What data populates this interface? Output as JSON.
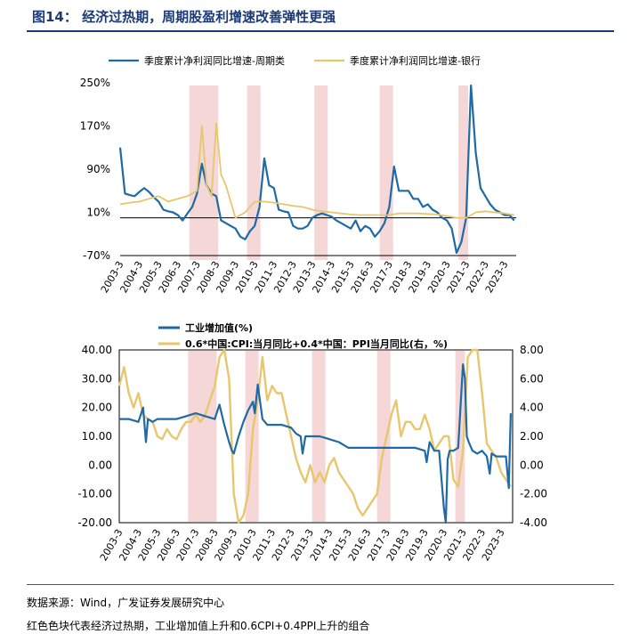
{
  "title": "图14：  经济过热期，周期股盈利增速改善弹性更强",
  "footer": {
    "source": "数据来源：Wind，广发证券发展研究中心",
    "note": "红色色块代表经济过热期，工业增加值上升和0.6CPI+0.4PPI上升的组合"
  },
  "colors": {
    "blue": "#1f6aa5",
    "gold": "#e8c66d",
    "shade": "#f6d7d7"
  },
  "chart_data": [
    {
      "type": "line",
      "legend": [
        "季度累计净利润同比增速-周期类",
        "季度累计净利润同比增速-银行"
      ],
      "yticks": [
        "250%",
        "170%",
        "90%",
        "10%",
        "-70%"
      ],
      "ylim": [
        -70,
        250
      ],
      "xticks": [
        "2003-3",
        "2004-3",
        "2005-3",
        "2006-3",
        "2007-3",
        "2008-3",
        "2009-3",
        "2010-3",
        "2011-3",
        "2012-3",
        "2013-3",
        "2014-3",
        "2015-3",
        "2016-3",
        "2017-3",
        "2018-3",
        "2019-3",
        "2020-3",
        "2021-3",
        "2022-3",
        "2023-3"
      ],
      "shaded_periods": [
        [
          2006.6,
          2008.1
        ],
        [
          2009.6,
          2010.3
        ],
        [
          2013.1,
          2013.8
        ],
        [
          2016.5,
          2017.2
        ],
        [
          2020.6,
          2021.1
        ]
      ],
      "series": [
        {
          "name": "季度累计净利润同比增速-周期类",
          "x": [
            2003.0,
            2003.25,
            2003.5,
            2003.75,
            2004.0,
            2004.25,
            2004.5,
            2004.75,
            2005.0,
            2005.25,
            2005.5,
            2005.75,
            2006.0,
            2006.25,
            2006.5,
            2006.75,
            2007.0,
            2007.25,
            2007.5,
            2007.75,
            2008.0,
            2008.25,
            2008.5,
            2008.75,
            2009.0,
            2009.25,
            2009.5,
            2009.75,
            2010.0,
            2010.25,
            2010.5,
            2010.75,
            2011.0,
            2011.25,
            2011.5,
            2011.75,
            2012.0,
            2012.25,
            2012.5,
            2012.75,
            2013.0,
            2013.25,
            2013.5,
            2013.75,
            2014.0,
            2014.25,
            2014.5,
            2014.75,
            2015.0,
            2015.25,
            2015.5,
            2015.75,
            2016.0,
            2016.25,
            2016.5,
            2016.75,
            2017.0,
            2017.25,
            2017.5,
            2017.75,
            2018.0,
            2018.25,
            2018.5,
            2018.75,
            2019.0,
            2019.25,
            2019.5,
            2019.75,
            2020.0,
            2020.25,
            2020.5,
            2020.75,
            2021.0,
            2021.25,
            2021.5,
            2021.75,
            2022.0,
            2022.25,
            2022.5,
            2022.75,
            2023.0,
            2023.25,
            2023.5
          ],
          "values": [
            130,
            45,
            42,
            40,
            48,
            55,
            48,
            38,
            30,
            15,
            12,
            10,
            5,
            -5,
            8,
            20,
            45,
            100,
            60,
            45,
            40,
            -5,
            -10,
            -15,
            -20,
            -35,
            -40,
            -25,
            -15,
            20,
            110,
            60,
            55,
            15,
            12,
            10,
            -15,
            -20,
            -20,
            -15,
            0,
            5,
            8,
            5,
            2,
            -5,
            -10,
            -15,
            -20,
            -5,
            -25,
            -15,
            -20,
            -35,
            -25,
            -10,
            20,
            95,
            50,
            50,
            50,
            35,
            35,
            20,
            25,
            15,
            10,
            0,
            -5,
            -20,
            -65,
            -45,
            0,
            245,
            120,
            55,
            40,
            25,
            15,
            10,
            5,
            5,
            -5
          ]
        },
        {
          "name": "季度累计净利润同比增速-银行",
          "x": [
            2003.0,
            2003.5,
            2004.0,
            2004.5,
            2005.0,
            2005.5,
            2006.0,
            2006.5,
            2007.0,
            2007.25,
            2007.5,
            2007.75,
            2008.0,
            2008.25,
            2008.5,
            2008.75,
            2009.0,
            2009.25,
            2009.5,
            2009.75,
            2010.0,
            2010.5,
            2011.0,
            2011.5,
            2012.0,
            2012.5,
            2013.0,
            2013.5,
            2014.0,
            2014.5,
            2015.0,
            2015.5,
            2016.0,
            2016.5,
            2017.0,
            2017.5,
            2018.0,
            2018.5,
            2019.0,
            2019.5,
            2020.0,
            2020.5,
            2021.0,
            2021.5,
            2022.0,
            2022.5,
            2023.0,
            2023.5
          ],
          "values": [
            25,
            28,
            30,
            35,
            40,
            30,
            35,
            40,
            50,
            170,
            60,
            40,
            175,
            80,
            60,
            30,
            0,
            5,
            10,
            20,
            30,
            30,
            28,
            25,
            22,
            20,
            15,
            12,
            10,
            8,
            6,
            5,
            5,
            5,
            5,
            8,
            8,
            8,
            7,
            6,
            3,
            0,
            0,
            10,
            12,
            10,
            8,
            5
          ]
        }
      ]
    },
    {
      "type": "line",
      "legend": [
        "工业增加值(%)",
        "0.6*中国:CPI:当月同比+0.4*中国：PPI当月同比(右，%)"
      ],
      "yticks_left": [
        "40.00",
        "30.00",
        "20.00",
        "10.00",
        "0.00",
        "-10.00",
        "-20.00"
      ],
      "ylim_left": [
        -20,
        40
      ],
      "yticks_right": [
        "8.00",
        "6.00",
        "4.00",
        "2.00",
        "0.00",
        "-2.00",
        "-4.00"
      ],
      "ylim_right": [
        -4,
        8
      ],
      "xticks": [
        "2003-3",
        "2004-3",
        "2005-3",
        "2006-3",
        "2007-3",
        "2008-3",
        "2009-3",
        "2010-3",
        "2011-3",
        "2012-3",
        "2013-3",
        "2014-3",
        "2015-3",
        "2016-3",
        "2017-3",
        "2018-3",
        "2019-3",
        "2020-3",
        "2021-3",
        "2022-3",
        "2023-3"
      ],
      "shaded_periods": [
        [
          2006.6,
          2008.1
        ],
        [
          2009.6,
          2010.3
        ],
        [
          2013.1,
          2013.8
        ],
        [
          2016.5,
          2017.2
        ],
        [
          2020.6,
          2021.1
        ]
      ],
      "series": [
        {
          "name": "工业增加值(%)",
          "axis": "left",
          "x": [
            2003.0,
            2003.5,
            2004.0,
            2004.25,
            2004.4,
            2004.5,
            2004.75,
            2005.0,
            2005.5,
            2006.0,
            2006.5,
            2007.0,
            2007.5,
            2008.0,
            2008.25,
            2008.5,
            2008.75,
            2008.9,
            2009.0,
            2009.25,
            2009.5,
            2009.75,
            2010.0,
            2010.1,
            2010.25,
            2010.5,
            2010.75,
            2011.0,
            2011.5,
            2012.0,
            2012.25,
            2012.5,
            2012.6,
            2012.75,
            2013.0,
            2013.5,
            2014.0,
            2014.5,
            2015.0,
            2015.5,
            2016.0,
            2016.5,
            2017.0,
            2017.5,
            2018.0,
            2018.5,
            2019.0,
            2019.1,
            2019.25,
            2019.5,
            2019.75,
            2020.0,
            2020.1,
            2020.2,
            2020.3,
            2020.5,
            2020.75,
            2021.0,
            2021.1,
            2021.2,
            2021.3,
            2021.5,
            2021.75,
            2022.0,
            2022.25,
            2022.4,
            2022.5,
            2022.75,
            2023.0,
            2023.25,
            2023.4,
            2023.5
          ],
          "values": [
            16,
            16,
            15,
            20,
            8,
            16,
            15,
            16,
            16,
            16,
            17,
            18,
            17,
            16,
            21,
            14,
            8,
            5,
            4,
            10,
            15,
            19,
            22,
            18,
            28,
            16,
            14,
            14,
            14,
            13,
            11,
            10,
            4,
            10,
            10,
            10,
            9,
            8,
            6,
            6,
            6,
            6,
            6,
            6,
            6,
            6,
            5,
            1,
            8,
            5,
            5,
            -15,
            -20,
            2,
            5,
            5,
            6,
            35,
            30,
            10,
            8,
            5,
            4,
            5,
            3,
            -3,
            4,
            3,
            3,
            3,
            -8,
            18
          ]
        },
        {
          "name": "0.6*中国:CPI:当月同比+0.4*中国：PPI当月同比(右，%)",
          "axis": "right",
          "x": [
            2003.0,
            2003.25,
            2003.5,
            2003.75,
            2004.0,
            2004.25,
            2004.5,
            2004.75,
            2005.0,
            2005.25,
            2005.5,
            2005.75,
            2006.0,
            2006.25,
            2006.5,
            2006.75,
            2007.0,
            2007.25,
            2007.5,
            2007.75,
            2008.0,
            2008.25,
            2008.5,
            2008.75,
            2009.0,
            2009.25,
            2009.5,
            2009.75,
            2010.0,
            2010.25,
            2010.5,
            2010.75,
            2011.0,
            2011.25,
            2011.5,
            2011.75,
            2012.0,
            2012.25,
            2012.5,
            2012.75,
            2013.0,
            2013.25,
            2013.5,
            2013.75,
            2014.0,
            2014.25,
            2014.5,
            2014.75,
            2015.0,
            2015.25,
            2015.5,
            2015.75,
            2016.0,
            2016.25,
            2016.5,
            2016.75,
            2017.0,
            2017.25,
            2017.5,
            2017.75,
            2018.0,
            2018.25,
            2018.5,
            2018.75,
            2019.0,
            2019.25,
            2019.5,
            2019.75,
            2020.0,
            2020.25,
            2020.5,
            2020.75,
            2021.0,
            2021.25,
            2021.5,
            2021.75,
            2022.0,
            2022.25,
            2022.5,
            2022.75,
            2023.0,
            2023.25,
            2023.5
          ],
          "values": [
            5.5,
            6.8,
            5,
            4,
            5,
            3.5,
            3.2,
            3,
            2,
            1.8,
            2.5,
            2,
            1.8,
            2.5,
            3,
            3,
            3.5,
            3,
            3.5,
            4.5,
            5.5,
            7.5,
            8,
            6,
            -2,
            -4,
            -3.5,
            -2,
            2.5,
            4.5,
            7.5,
            4.5,
            5.5,
            5,
            5,
            3.5,
            2,
            0.5,
            -0.5,
            -1.2,
            0,
            -1.2,
            -0.5,
            -1.2,
            0,
            0.5,
            -0.5,
            -1,
            -1.5,
            -2,
            -3,
            -3.5,
            -3,
            -2.5,
            -2,
            0.5,
            2,
            3.5,
            4.5,
            2,
            3,
            3,
            2.5,
            2.5,
            3.5,
            2.5,
            1,
            1.5,
            2,
            2,
            -1,
            -1.5,
            1,
            7.5,
            8,
            8,
            5,
            1.5,
            1,
            0.5,
            -0.5,
            -1,
            -1.5
          ]
        }
      ]
    }
  ]
}
